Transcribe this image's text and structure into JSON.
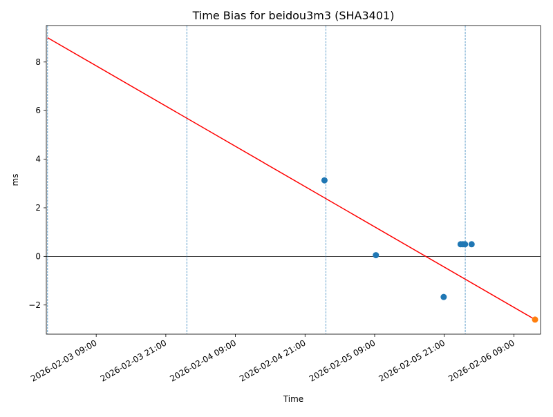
{
  "chart_data": {
    "type": "scatter",
    "title": "Time Bias for beidou3m3 (SHA3401)",
    "xlabel": "Time",
    "ylabel": "ms",
    "xlim": [
      "2026-02-03 00:24",
      "2026-02-06 13:36"
    ],
    "ylim": [
      -3.2,
      9.5
    ],
    "x_ticks": [
      "2026-02-03 09:00",
      "2026-02-03 21:00",
      "2026-02-04 09:00",
      "2026-02-04 21:00",
      "2026-02-05 09:00",
      "2026-02-05 21:00",
      "2026-02-06 09:00"
    ],
    "x_tick_labels": [
      "2026-02-03 09:00",
      "2026-02-03 21:00",
      "2026-02-04 09:00",
      "2026-02-04 21:00",
      "2026-02-05 09:00",
      "2026-02-05 21:00",
      "2026-02-06 09:00"
    ],
    "y_ticks": [
      -2,
      0,
      2,
      4,
      6,
      8
    ],
    "y_tick_labels": [
      "−2",
      "0",
      "2",
      "4",
      "6",
      "8"
    ],
    "grid": false,
    "series": [
      {
        "color": "#1f77b4",
        "points": [
          {
            "x": "2026-02-05 00:21",
            "y": 3.13
          },
          {
            "x": "2026-02-05 09:13",
            "y": 0.05
          },
          {
            "x": "2026-02-05 20:54",
            "y": -1.67
          },
          {
            "x": "2026-02-05 23:49",
            "y": 0.5
          },
          {
            "x": "2026-02-06 00:13",
            "y": 0.5
          },
          {
            "x": "2026-02-06 00:35",
            "y": 0.5
          },
          {
            "x": "2026-02-06 01:43",
            "y": 0.5
          }
        ]
      },
      {
        "color": "#ff7f0e",
        "points": [
          {
            "x": "2026-02-06 12:39",
            "y": -2.6
          }
        ]
      }
    ],
    "trend_line": {
      "color": "#ff0000",
      "points": [
        {
          "x": "2026-02-03 00:37",
          "y": 9.0
        },
        {
          "x": "2026-02-06 12:39",
          "y": -2.6
        }
      ]
    },
    "reference_lines": {
      "horizontal_y": 0,
      "vertical_x": [
        "2026-02-03 00:37",
        "2026-02-04 00:37",
        "2026-02-05 00:37",
        "2026-02-06 00:37"
      ],
      "vertical_color": "#1f77b4"
    }
  }
}
